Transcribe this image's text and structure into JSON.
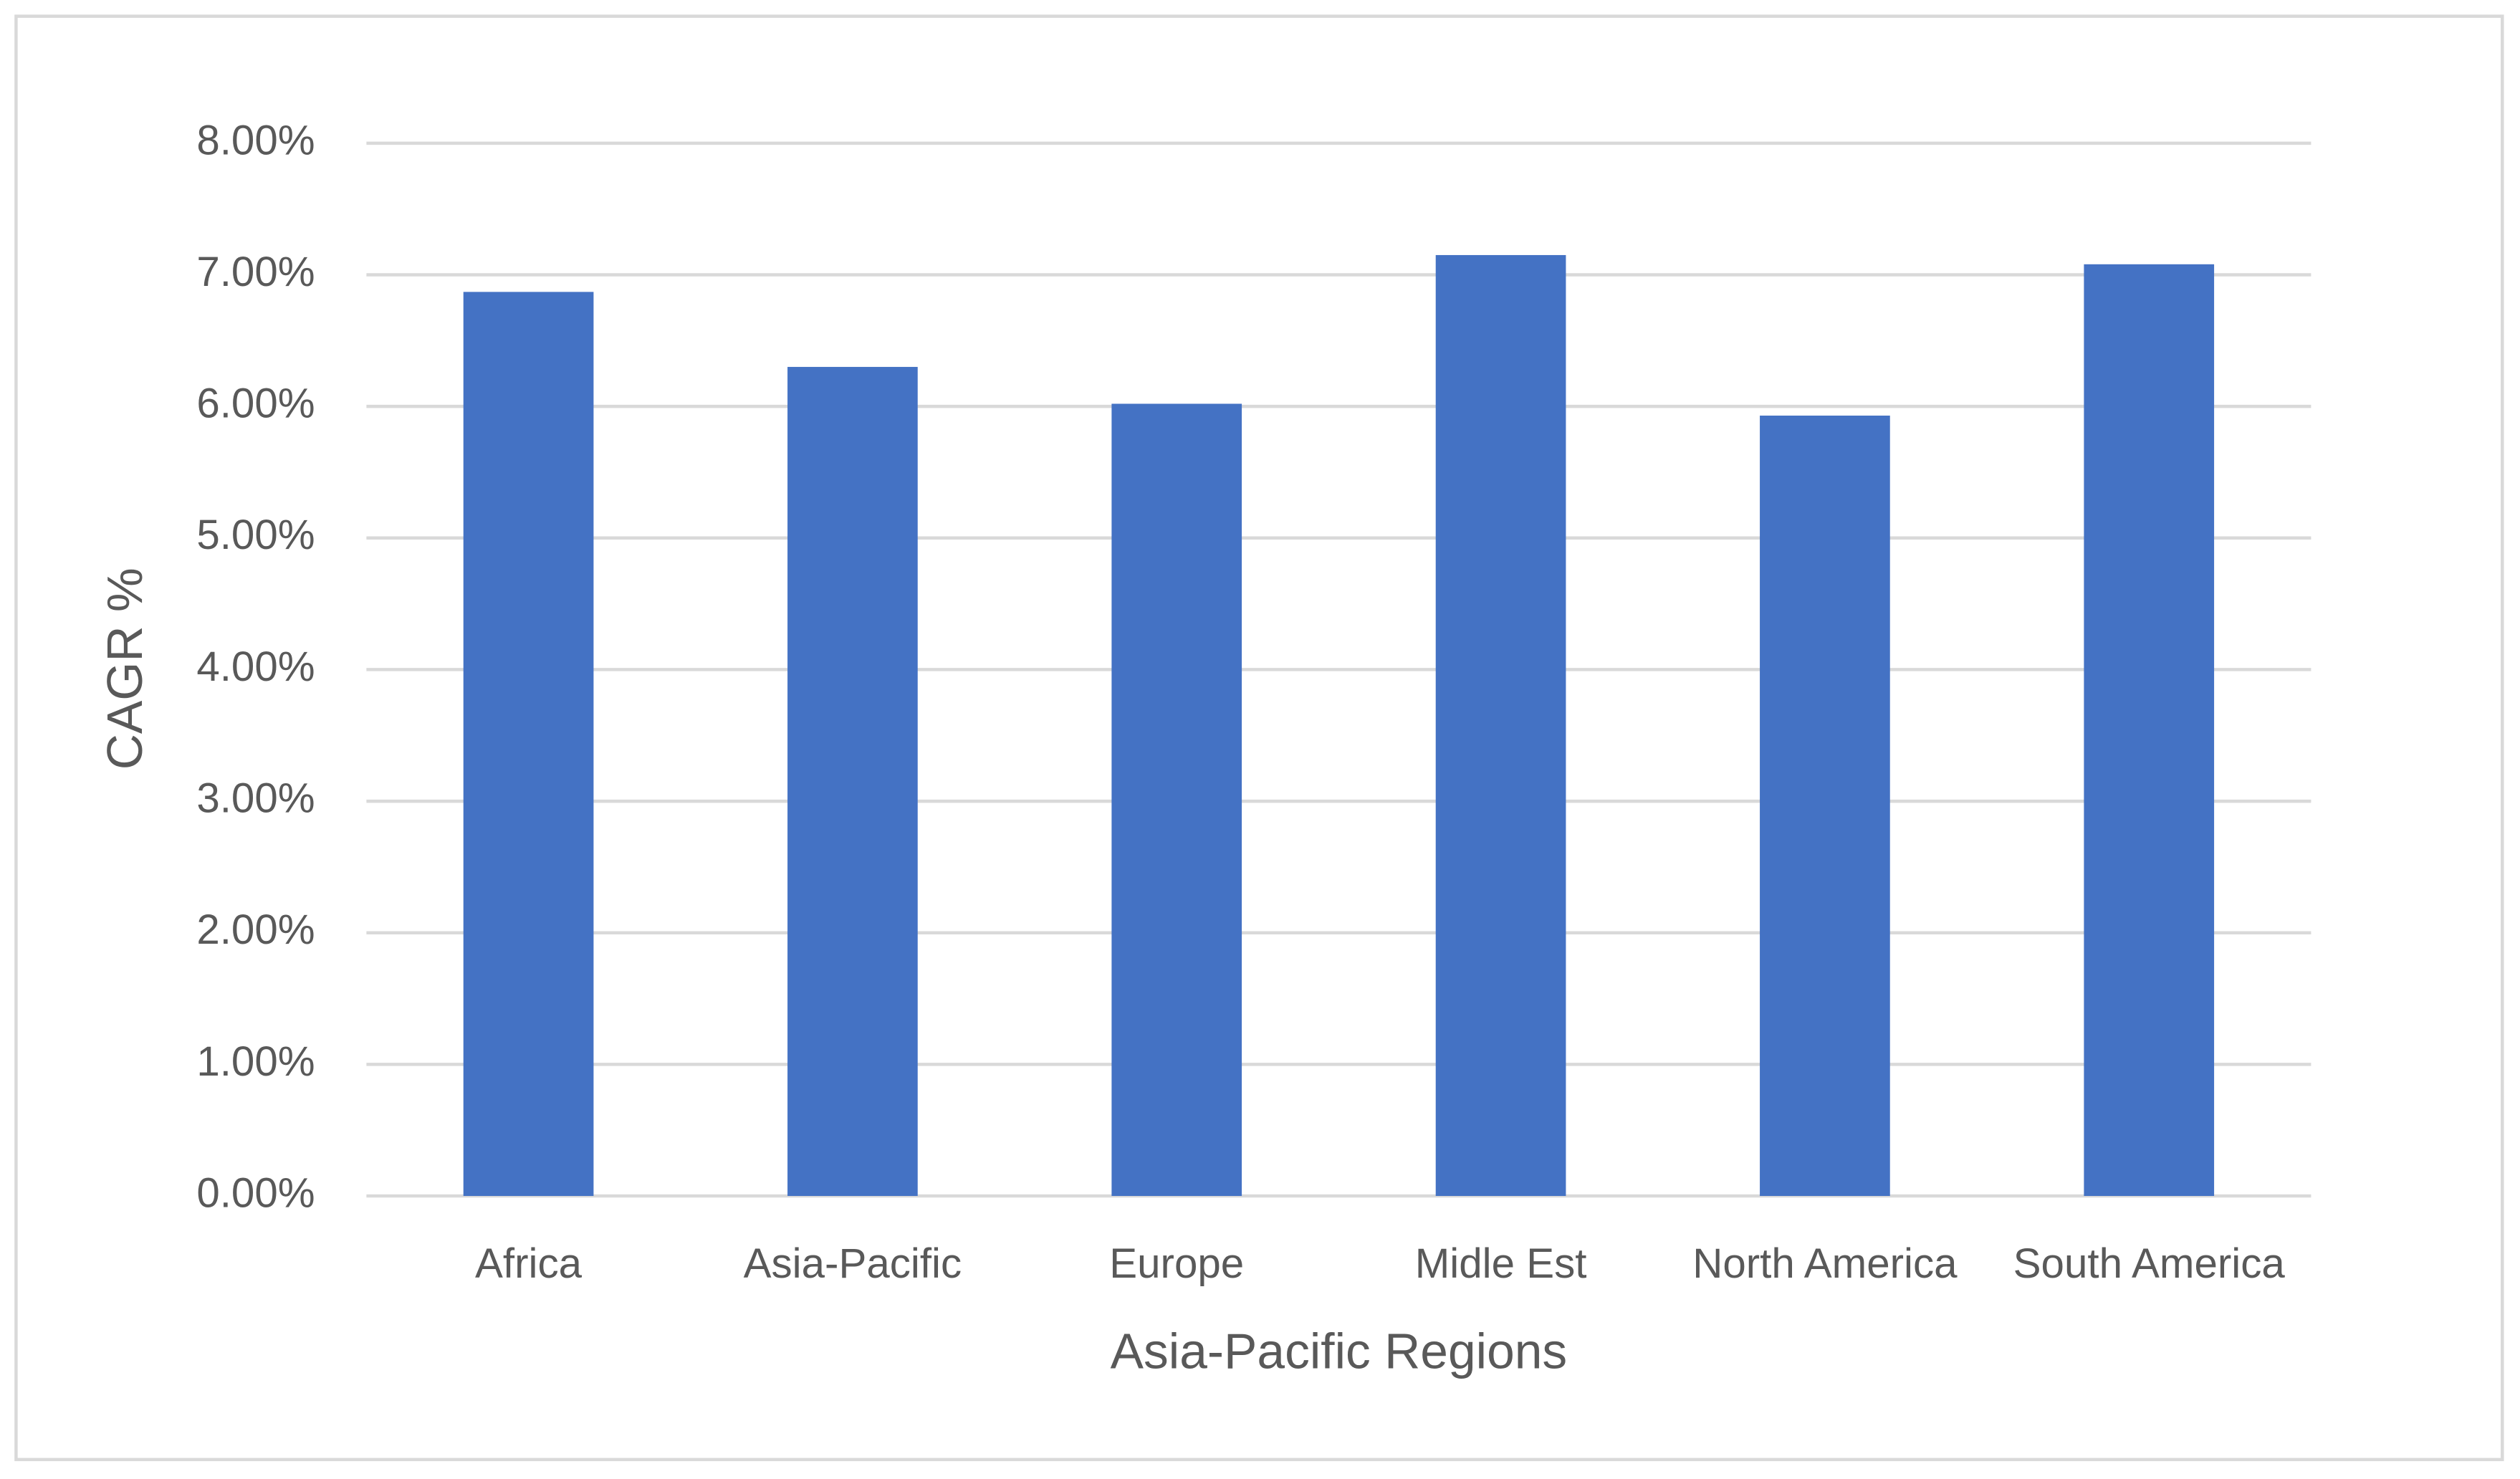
{
  "chart_data": {
    "type": "bar",
    "x_label": "Asia-Pacific Regions",
    "y_label": "CAGR %",
    "categories": [
      "Africa",
      "Asia-Pacific",
      "Europe",
      "Midle Est",
      "North America",
      "South America"
    ],
    "values": [
      6.87,
      6.3,
      6.02,
      7.15,
      5.93,
      7.08
    ],
    "color": "#4472c4",
    "ylim": [
      0,
      8
    ],
    "yticks": [
      {
        "value": 0,
        "label": "0.00%"
      },
      {
        "value": 1,
        "label": "1.00%"
      },
      {
        "value": 2,
        "label": "2.00%"
      },
      {
        "value": 3,
        "label": "3.00%"
      },
      {
        "value": 4,
        "label": "4.00%"
      },
      {
        "value": 5,
        "label": "5.00%"
      },
      {
        "value": 6,
        "label": "6.00%"
      },
      {
        "value": 7,
        "label": "7.00%"
      },
      {
        "value": 8,
        "label": "8.00%"
      }
    ],
    "grid": true
  }
}
